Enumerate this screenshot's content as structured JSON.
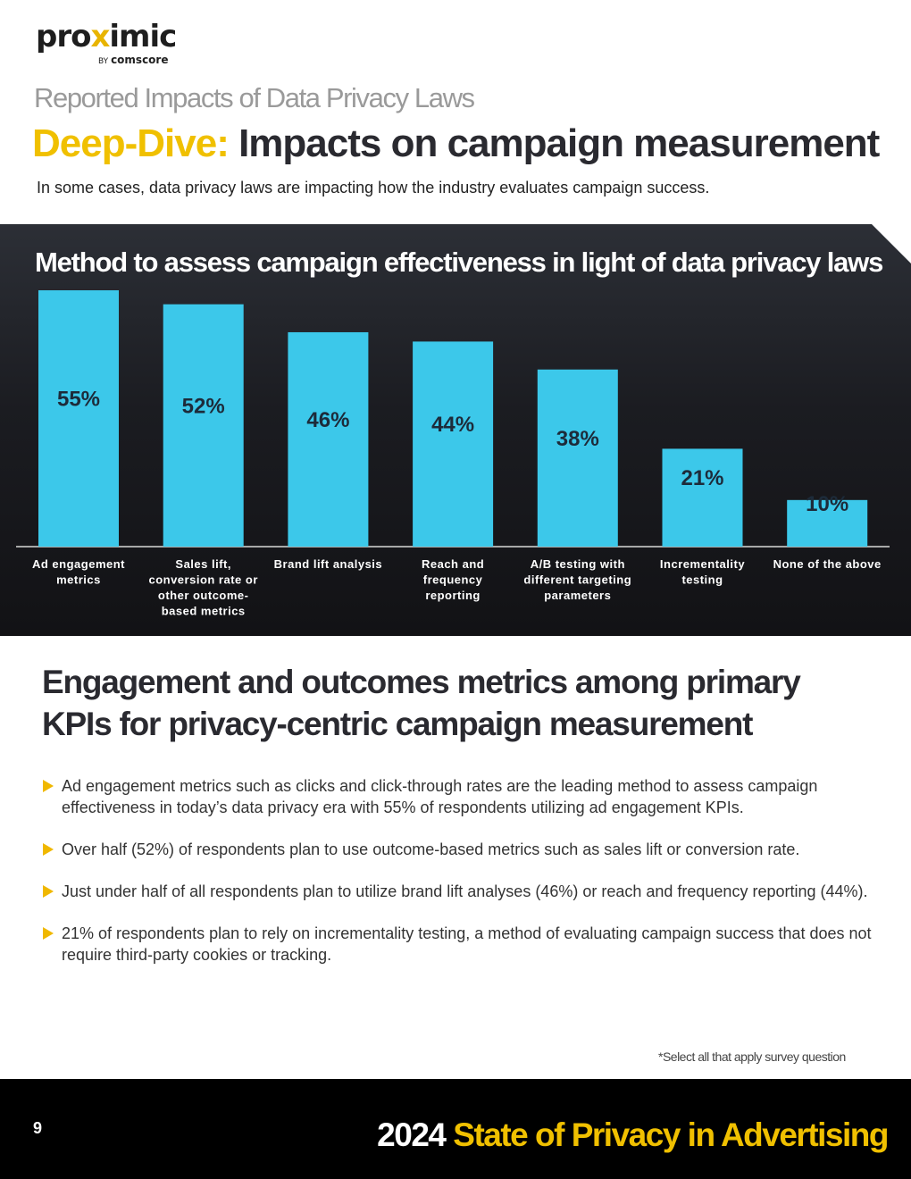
{
  "logo": {
    "brand_pre": "pro",
    "brand_x": "x",
    "brand_post": "imic",
    "by": "BY",
    "parent": "comscore"
  },
  "kicker": "Reported Impacts of Data Privacy Laws",
  "headline": {
    "accent": "Deep-Dive:",
    "rest": "Impacts on campaign measurement"
  },
  "subtitle": "In some cases, data privacy laws are impacting how the industry evaluates campaign success.",
  "chart_data": {
    "type": "bar",
    "title": "Method to assess campaign effectiveness in light of data privacy laws",
    "categories": [
      [
        "Ad engagement",
        "metrics"
      ],
      [
        "Sales lift,",
        "conversion rate or",
        "other outcome-",
        "based metrics"
      ],
      [
        "Brand lift analysis"
      ],
      [
        "Reach and",
        "frequency",
        "reporting"
      ],
      [
        "A/B testing with",
        "different targeting",
        "parameters"
      ],
      [
        "Incrementality",
        "testing"
      ],
      [
        "None of the above"
      ]
    ],
    "values": [
      55,
      52,
      46,
      44,
      38,
      21,
      10
    ],
    "value_suffix": "%",
    "ylim": [
      0,
      55
    ],
    "bar_color": "#3cc8ea",
    "grid": false
  },
  "section_title": "Engagement and outcomes metrics among primary KPIs for privacy-centric campaign measurement",
  "bullets": [
    "Ad engagement metrics such as clicks and click-through rates are the leading method to assess campaign effectiveness in today’s data privacy era with 55% of respondents utilizing ad engagement KPIs.",
    "Over half (52%) of respondents plan to use outcome-based metrics such as sales lift or conversion rate.",
    "Just under half of all respondents plan to utilize brand lift analyses (46%) or reach and frequency reporting (44%).",
    "21% of respondents plan to rely on incrementality testing, a method of evaluating campaign success that does not require third-party cookies or tracking."
  ],
  "footnote": "*Select all that apply survey question",
  "footer": {
    "page": "9",
    "year": "2024",
    "title": "State of Privacy in Advertising"
  },
  "colors": {
    "accent": "#f0c000",
    "bar": "#3cc8ea",
    "dark": "#1b1c21"
  }
}
